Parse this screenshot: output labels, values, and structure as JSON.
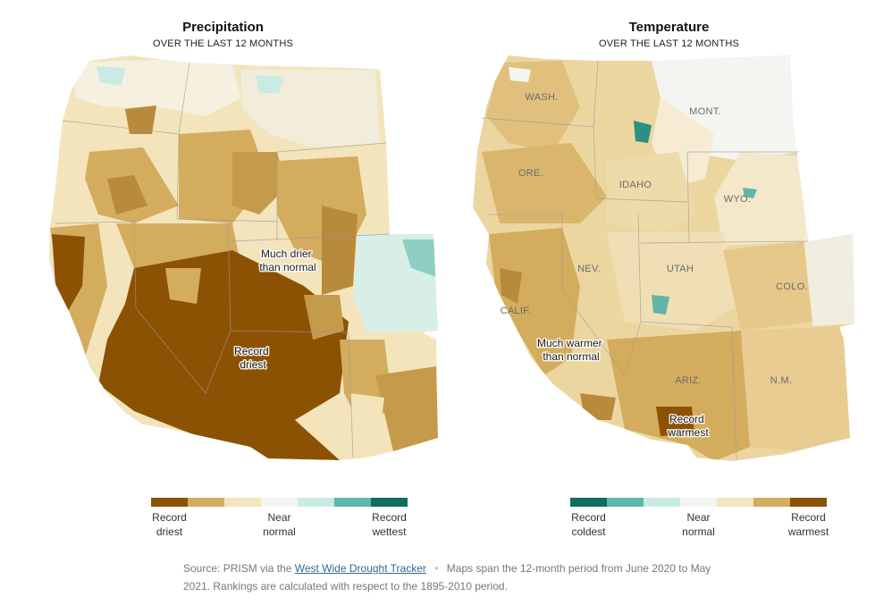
{
  "maps": [
    {
      "title": "Precipitation",
      "subtitle": "OVER THE LAST 12 MONTHS",
      "annotations": [
        "Much drier than normal",
        "Record driest"
      ],
      "legend": {
        "colors": [
          "#8c5204",
          "#d4ac5e",
          "#f3e4bc",
          "#f4f4f1",
          "#c9ebe3",
          "#5fb6a9",
          "#0f6e5e"
        ],
        "labels": [
          {
            "text": "Record driest",
            "position": 0
          },
          {
            "text": "Near normal",
            "position": 3
          },
          {
            "text": "Record wettest",
            "position": 6
          }
        ]
      }
    },
    {
      "title": "Temperature",
      "subtitle": "OVER THE LAST 12 MONTHS",
      "state_labels": [
        "WASH.",
        "MONT.",
        "ORE.",
        "IDAHO",
        "WYO.",
        "NEV.",
        "UTAH",
        "COLO.",
        "CALIF.",
        "ARIZ.",
        "N.M."
      ],
      "annotations": [
        "Much warmer than normal",
        "Record warmest"
      ],
      "legend": {
        "colors": [
          "#0f6e5e",
          "#5fb6a9",
          "#c9ebe3",
          "#f4f4f1",
          "#f3e4bc",
          "#d4ac5e",
          "#8c5204"
        ],
        "labels": [
          {
            "text": "Record coldest",
            "position": 0
          },
          {
            "text": "Near normal",
            "position": 3
          },
          {
            "text": "Record warmest",
            "position": 6
          }
        ]
      }
    }
  ],
  "source": {
    "prefix": "Source: PRISM via the",
    "link_text": "West Wide Drought Tracker",
    "separator": "•",
    "note": "Maps span the 12-month period from June 2020 to May 2021. Rankings are calculated with respect to the 1895-2010 period."
  }
}
